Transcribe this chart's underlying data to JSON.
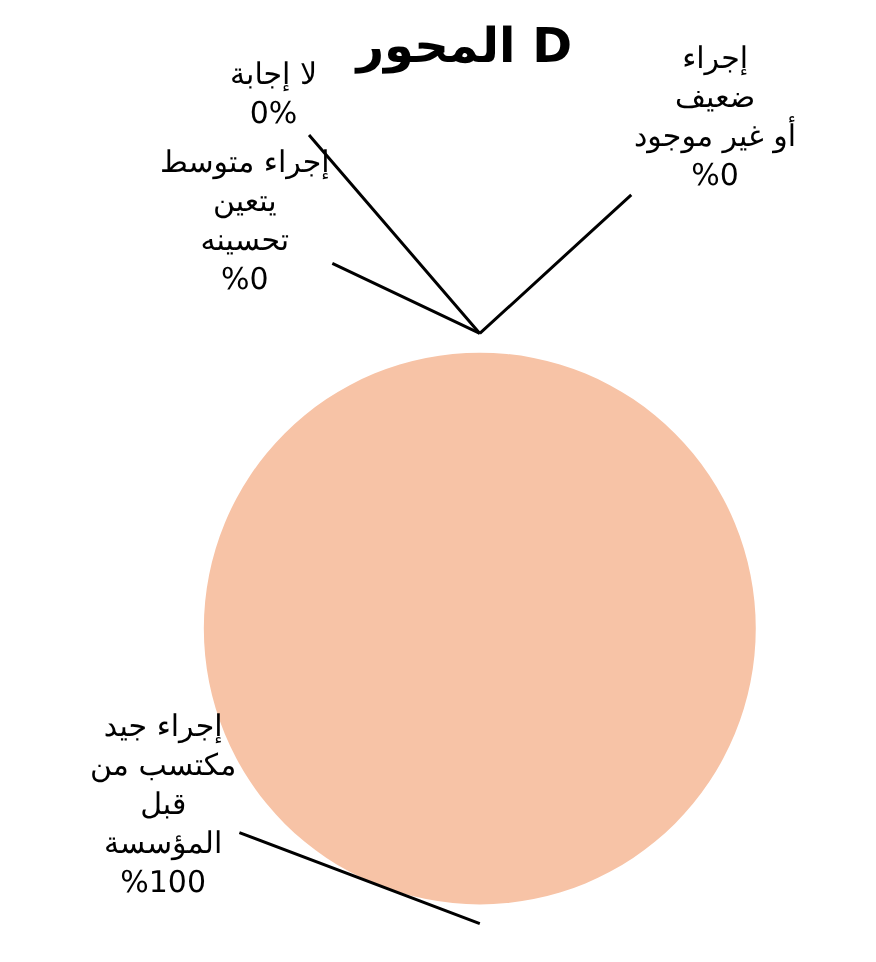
{
  "chart_data": {
    "type": "pie",
    "title": "المحور D",
    "categories": [
      "إجراء ضعيف أو غير موجود",
      "لا إجابة",
      "إجراء متوسط يتعين تحسينه",
      "إجراء جيد مكتسب من قبل المؤسسة"
    ],
    "values": [
      0,
      0,
      0,
      100
    ],
    "value_labels": [
      "%0",
      "0%",
      "%0",
      "%100"
    ],
    "colors": [
      "#c0504d",
      "#9bbb59",
      "#4f81bd",
      "#f7c3a6"
    ],
    "legend": false
  }
}
